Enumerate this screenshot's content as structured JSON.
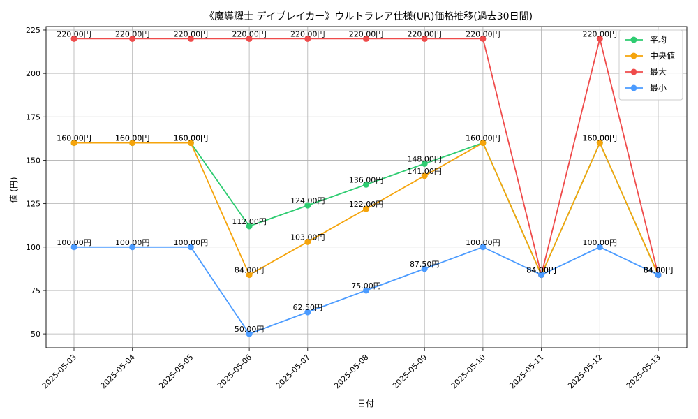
{
  "chart_data": {
    "type": "line",
    "title": "《魔導耀士 デイブレイカー》ウルトラレア仕様(UR)価格推移(過去30日間)",
    "xlabel": "日付",
    "ylabel": "値 (円)",
    "ylim": [
      42,
      227
    ],
    "yticks": [
      50,
      75,
      100,
      125,
      150,
      175,
      200,
      225
    ],
    "grid": true,
    "legend_position": "top-right",
    "value_suffix": "円",
    "categories": [
      "2025-05-03",
      "2025-05-04",
      "2025-05-05",
      "2025-05-06",
      "2025-05-07",
      "2025-05-08",
      "2025-05-09",
      "2025-05-10",
      "2025-05-11",
      "2025-05-12",
      "2025-05-13"
    ],
    "series": [
      {
        "name": "平均",
        "color": "#2ecc71",
        "values": [
          160,
          160,
          160,
          112,
          124,
          136,
          148,
          160,
          84,
          160,
          84
        ]
      },
      {
        "name": "中央値",
        "color": "#f5a40c",
        "values": [
          160,
          160,
          160,
          84,
          103,
          122,
          141,
          160,
          84,
          160,
          84
        ]
      },
      {
        "name": "最大",
        "color": "#ef4b4b",
        "values": [
          220,
          220,
          220,
          220,
          220,
          220,
          220,
          220,
          84,
          220,
          84
        ]
      },
      {
        "name": "最小",
        "color": "#4b9bff",
        "values": [
          100,
          100,
          100,
          50,
          62.5,
          75,
          87.5,
          100,
          84,
          100,
          84
        ]
      }
    ]
  }
}
